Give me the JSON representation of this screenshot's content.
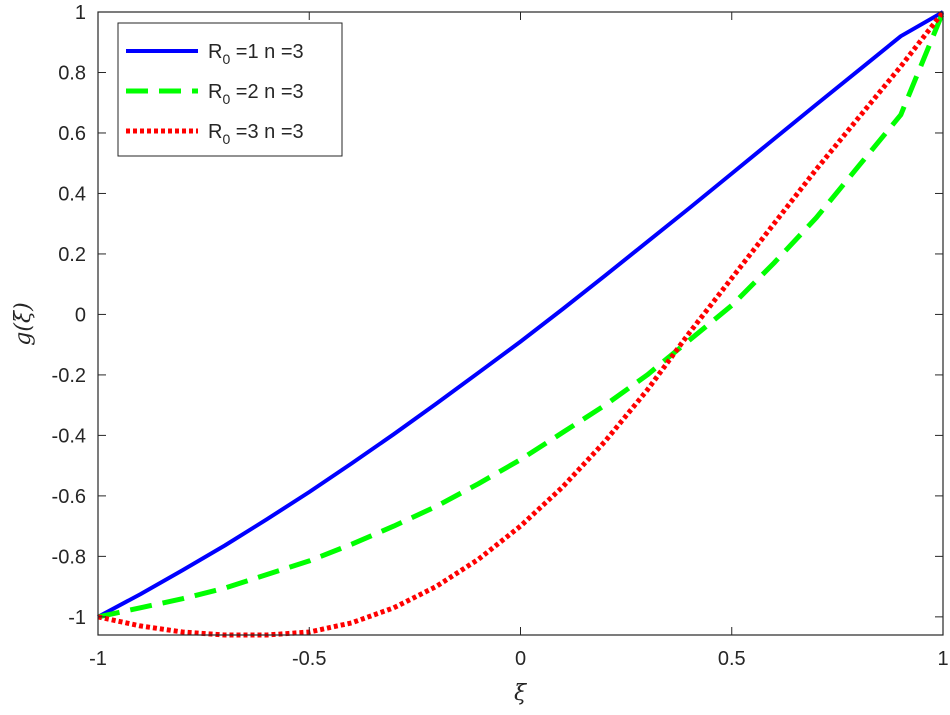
{
  "chart_data": {
    "type": "line",
    "xlabel": "ξ",
    "ylabel": "g(ξ)",
    "xlim": [
      -1,
      1
    ],
    "ylim": [
      -1.06,
      1
    ],
    "xticks": [
      -1,
      -0.5,
      0,
      0.5,
      1
    ],
    "xtick_labels": [
      "-1",
      "-0.5",
      "0",
      "0.5",
      "1"
    ],
    "yticks": [
      -1,
      -0.8,
      -0.6,
      -0.4,
      -0.2,
      0,
      0.2,
      0.4,
      0.6,
      0.8,
      1
    ],
    "ytick_labels": [
      "-1",
      "-0.8",
      "-0.6",
      "-0.4",
      "-0.2",
      "0",
      "0.2",
      "0.4",
      "0.6",
      "0.8",
      "1"
    ],
    "grid": false,
    "legend_position": "top-left",
    "x": [
      -1,
      -0.9,
      -0.8,
      -0.7,
      -0.6,
      -0.5,
      -0.4,
      -0.3,
      -0.2,
      -0.1,
      0,
      0.1,
      0.2,
      0.3,
      0.4,
      0.5,
      0.6,
      0.7,
      0.8,
      0.9,
      1
    ],
    "series": [
      {
        "legend": {
          "r": "R",
          "sub": "0",
          "rest": " =1  n =3"
        },
        "color": "#0000ff",
        "style": "solid",
        "values": [
          -1,
          -0.925,
          -0.846,
          -0.764,
          -0.677,
          -0.587,
          -0.493,
          -0.396,
          -0.296,
          -0.193,
          -0.09,
          0.018,
          0.128,
          0.24,
          0.352,
          0.466,
          0.58,
          0.694,
          0.807,
          0.92,
          1
        ]
      },
      {
        "legend": {
          "r": "R",
          "sub": "0",
          "rest": " =2  n =3"
        },
        "color": "#00ff00",
        "style": "dashed",
        "values": [
          -1,
          -0.97,
          -0.94,
          -0.905,
          -0.86,
          -0.815,
          -0.76,
          -0.7,
          -0.635,
          -0.56,
          -0.48,
          -0.39,
          -0.3,
          -0.2,
          -0.085,
          0.03,
          0.17,
          0.32,
          0.49,
          0.66,
          1
        ]
      },
      {
        "legend": {
          "r": "R",
          "sub": "0",
          "rest": " =3  n =3"
        },
        "color": "#ff0000",
        "style": "dotted",
        "values": [
          -1,
          -1.03,
          -1.05,
          -1.06,
          -1.06,
          -1.05,
          -1.02,
          -0.97,
          -0.9,
          -0.81,
          -0.7,
          -0.57,
          -0.42,
          -0.25,
          -0.06,
          0.12,
          0.3,
          0.48,
          0.65,
          0.82,
          1
        ]
      }
    ]
  }
}
